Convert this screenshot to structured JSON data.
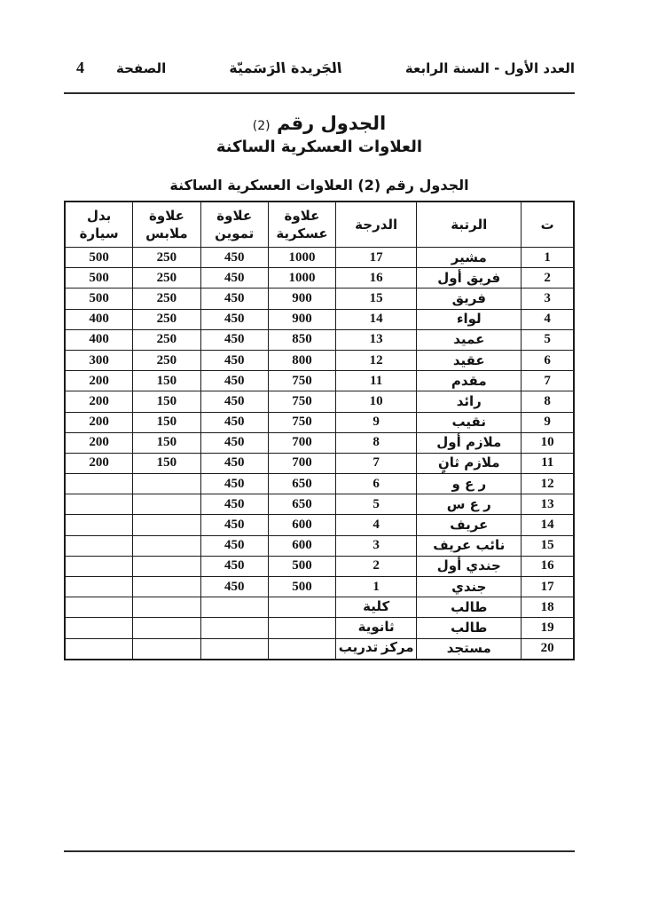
{
  "header": {
    "issue_info": "العدد الأول - السنة الرابعة",
    "gazette_name": "الجَريدة الرَسَميّة",
    "page_label": "الصفحة",
    "page_number": "4"
  },
  "title": {
    "line1": "الجدول رقم",
    "line1_number": "(2)",
    "line2": "العلاوات العسكرية الساكنة"
  },
  "table_caption": "الجدول رقم (2) العلاوات العسكرية الساكنة",
  "table": {
    "headers": [
      {
        "key": "no",
        "label": "ت"
      },
      {
        "key": "rank",
        "label": "الرتبة"
      },
      {
        "key": "grade",
        "label": "الدرجة"
      },
      {
        "key": "military",
        "label": "علاوة\nعسكرية"
      },
      {
        "key": "provisions",
        "label": "علاوة\nتموين"
      },
      {
        "key": "clothing",
        "label": "علاوة\nملابس"
      },
      {
        "key": "car",
        "label": "بدل\nسيارة"
      }
    ],
    "rows": [
      {
        "no": "1",
        "rank": "مشير",
        "grade": "17",
        "military": "1000",
        "provisions": "450",
        "clothing": "250",
        "car": "500"
      },
      {
        "no": "2",
        "rank": "فريق أول",
        "grade": "16",
        "military": "1000",
        "provisions": "450",
        "clothing": "250",
        "car": "500"
      },
      {
        "no": "3",
        "rank": "فريق",
        "grade": "15",
        "military": "900",
        "provisions": "450",
        "clothing": "250",
        "car": "500"
      },
      {
        "no": "4",
        "rank": "لواء",
        "grade": "14",
        "military": "900",
        "provisions": "450",
        "clothing": "250",
        "car": "400"
      },
      {
        "no": "5",
        "rank": "عميد",
        "grade": "13",
        "military": "850",
        "provisions": "450",
        "clothing": "250",
        "car": "400"
      },
      {
        "no": "6",
        "rank": "عقيد",
        "grade": "12",
        "military": "800",
        "provisions": "450",
        "clothing": "250",
        "car": "300"
      },
      {
        "no": "7",
        "rank": "مقدم",
        "grade": "11",
        "military": "750",
        "provisions": "450",
        "clothing": "150",
        "car": "200"
      },
      {
        "no": "8",
        "rank": "رائد",
        "grade": "10",
        "military": "750",
        "provisions": "450",
        "clothing": "150",
        "car": "200"
      },
      {
        "no": "9",
        "rank": "نقيب",
        "grade": "9",
        "military": "750",
        "provisions": "450",
        "clothing": "150",
        "car": "200"
      },
      {
        "no": "10",
        "rank": "ملازم أول",
        "grade": "8",
        "military": "700",
        "provisions": "450",
        "clothing": "150",
        "car": "200"
      },
      {
        "no": "11",
        "rank": "ملازم ثانٍ",
        "grade": "7",
        "military": "700",
        "provisions": "450",
        "clothing": "150",
        "car": "200"
      },
      {
        "no": "12",
        "rank": "ر ع و",
        "grade": "6",
        "military": "650",
        "provisions": "450",
        "clothing": "",
        "car": ""
      },
      {
        "no": "13",
        "rank": "ر ع س",
        "grade": "5",
        "military": "650",
        "provisions": "450",
        "clothing": "",
        "car": ""
      },
      {
        "no": "14",
        "rank": "عريف",
        "grade": "4",
        "military": "600",
        "provisions": "450",
        "clothing": "",
        "car": ""
      },
      {
        "no": "15",
        "rank": "نائب عريف",
        "grade": "3",
        "military": "600",
        "provisions": "450",
        "clothing": "",
        "car": ""
      },
      {
        "no": "16",
        "rank": "جندي أول",
        "grade": "2",
        "military": "500",
        "provisions": "450",
        "clothing": "",
        "car": ""
      },
      {
        "no": "17",
        "rank": "جندي",
        "grade": "1",
        "military": "500",
        "provisions": "450",
        "clothing": "",
        "car": ""
      },
      {
        "no": "18",
        "rank": "طالب",
        "grade": "كلية",
        "military": "",
        "provisions": "",
        "clothing": "",
        "car": ""
      },
      {
        "no": "19",
        "rank": "طالب",
        "grade": "ثانوية",
        "military": "",
        "provisions": "",
        "clothing": "",
        "car": ""
      },
      {
        "no": "20",
        "rank": "مستجد",
        "grade": "مركز تدريب",
        "military": "",
        "provisions": "",
        "clothing": "",
        "car": ""
      }
    ]
  }
}
